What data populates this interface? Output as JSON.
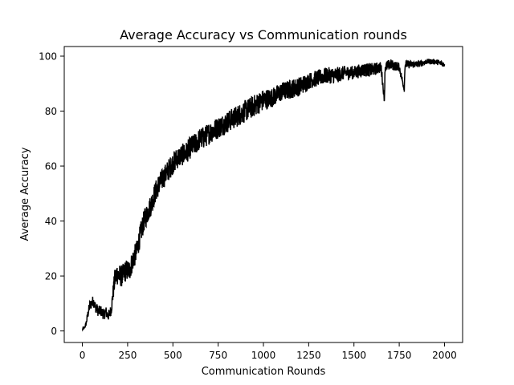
{
  "chart_data": {
    "type": "line",
    "title": "Average Accuracy vs Communication rounds",
    "xlabel": "Communication Rounds",
    "ylabel": "Average Accuracy",
    "xlim": [
      -100,
      2100
    ],
    "ylim": [
      -4.2,
      103.5
    ],
    "xticks": [
      0,
      250,
      500,
      750,
      1000,
      1250,
      1500,
      1750,
      2000
    ],
    "yticks": [
      0,
      20,
      40,
      60,
      80,
      100
    ],
    "grid": false,
    "legend": "none",
    "series": [
      {
        "color": "#000000",
        "x": [
          0,
          10,
          20,
          30,
          40,
          50,
          60,
          70,
          80,
          90,
          100,
          110,
          120,
          130,
          140,
          150,
          160,
          170,
          180,
          190,
          200,
          220,
          240,
          260,
          280,
          300,
          320,
          340,
          360,
          380,
          400,
          420,
          440,
          460,
          480,
          500,
          525,
          550,
          575,
          600,
          625,
          650,
          675,
          700,
          725,
          750,
          775,
          800,
          850,
          900,
          950,
          1000,
          1050,
          1100,
          1150,
          1200,
          1250,
          1300,
          1350,
          1400,
          1450,
          1500,
          1550,
          1600,
          1650,
          1668,
          1672,
          1700,
          1750,
          1778,
          1782,
          1800,
          1850,
          1900,
          1950,
          2000
        ],
        "y": [
          0.5,
          1,
          2.5,
          6,
          9,
          10,
          11,
          9,
          8,
          7,
          7.5,
          6.5,
          6,
          7,
          5.5,
          6,
          8,
          14,
          19,
          21,
          20,
          20,
          22,
          22,
          26,
          29,
          35,
          40,
          43,
          46,
          50,
          53,
          55,
          57,
          59,
          61,
          63,
          64,
          65,
          67,
          68,
          70,
          70.5,
          72,
          73,
          74,
          75,
          76,
          78,
          80,
          82,
          84,
          85,
          87,
          88,
          89,
          91,
          92,
          93,
          93,
          94,
          94,
          95,
          95,
          96,
          84,
          96,
          97,
          96,
          88,
          97,
          97,
          97,
          98,
          98,
          97
        ],
        "noise_amplitude": [
          0.3,
          0.5,
          0.8,
          1.5,
          2,
          2,
          2,
          2,
          2,
          2,
          2,
          2,
          2,
          2,
          2,
          2,
          2,
          3,
          4,
          4,
          4,
          4,
          4,
          4,
          4,
          4,
          4,
          4,
          4,
          4,
          4,
          4,
          4,
          4,
          4,
          4,
          4,
          4,
          4,
          4,
          4,
          4,
          4,
          4,
          4,
          4,
          4,
          4,
          4,
          4,
          4,
          4,
          3.5,
          3.5,
          3.5,
          3.5,
          3,
          3,
          3,
          3,
          2.5,
          2.5,
          2.5,
          2.5,
          2,
          1,
          2,
          2,
          1.5,
          1,
          1.5,
          1.5,
          1.2,
          1,
          1,
          1
        ]
      }
    ]
  }
}
